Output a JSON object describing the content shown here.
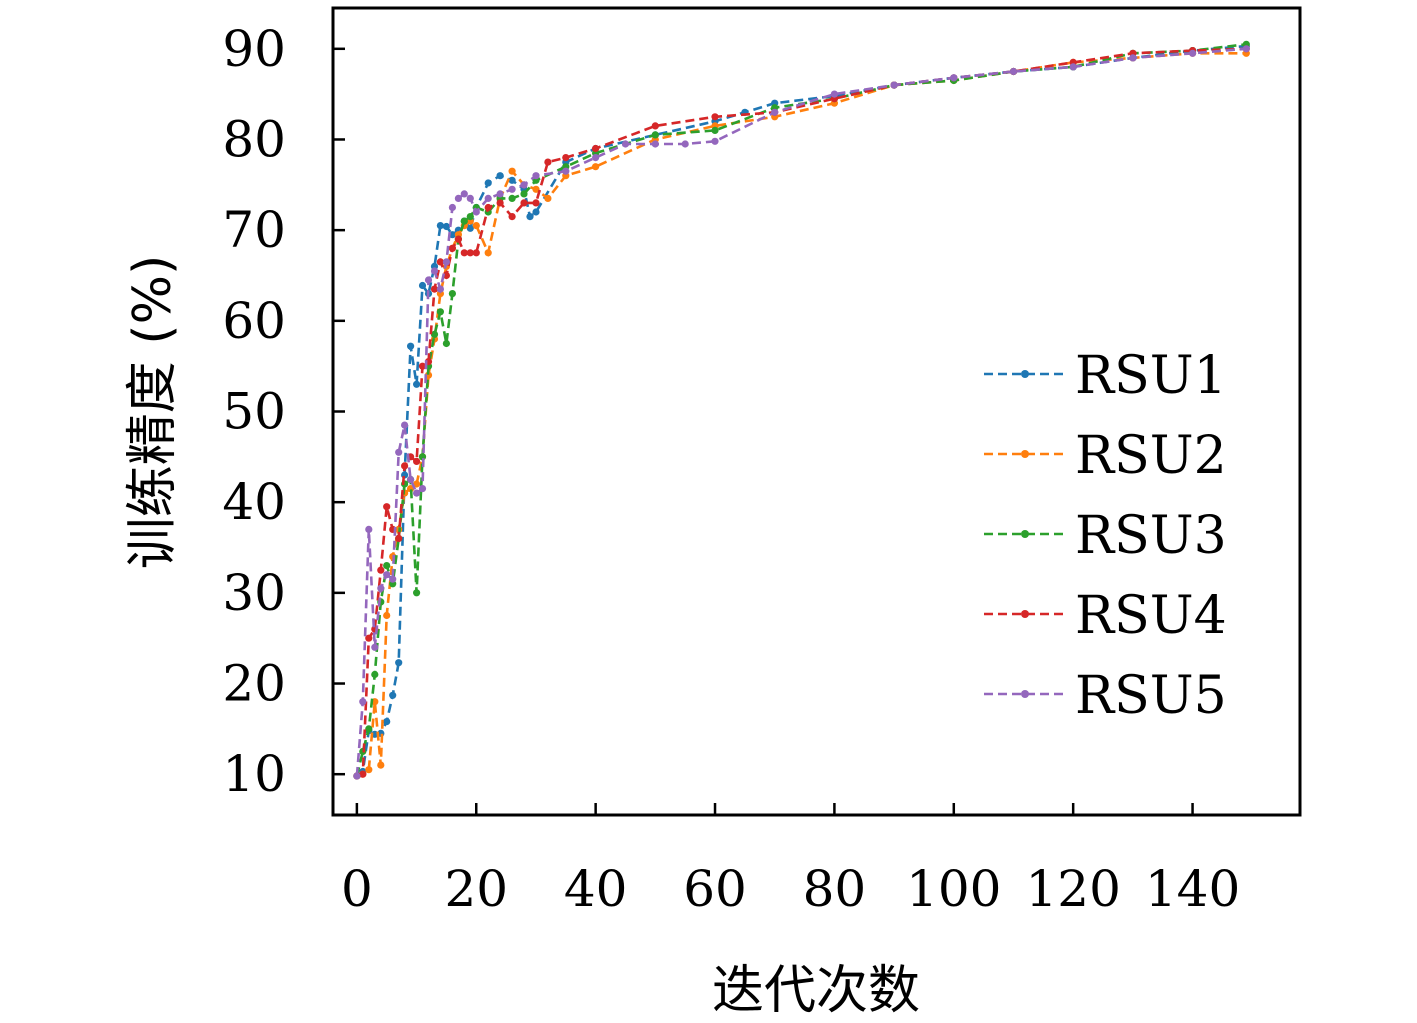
{
  "chart_data": {
    "type": "line",
    "xlabel": "迭代次数",
    "ylabel": "训练精度 (%)",
    "xlim": [
      -4,
      158
    ],
    "ylim": [
      5.5,
      94.5
    ],
    "xticks": [
      0,
      20,
      40,
      60,
      80,
      100,
      120,
      140
    ],
    "yticks": [
      10,
      20,
      30,
      40,
      50,
      60,
      70,
      80,
      90
    ],
    "grid": false,
    "legend_position": "center-right",
    "line_style": "dashed with dot markers",
    "series": [
      {
        "name": "RSU1",
        "color": "#1f77b4",
        "x": [
          0,
          1,
          2,
          3,
          4,
          5,
          6,
          7,
          8,
          9,
          10,
          11,
          12,
          13,
          14,
          15,
          16,
          17,
          18,
          19,
          20,
          22,
          24,
          26,
          28,
          29,
          30,
          35,
          40,
          50,
          60,
          65,
          70,
          80,
          90,
          100,
          110,
          120,
          130,
          140,
          149
        ],
        "y": [
          9.8,
          10.3,
          14.8,
          14.4,
          14.5,
          15.8,
          18.7,
          22.3,
          43.0,
          57.2,
          53.0,
          63.9,
          63.0,
          66.0,
          70.5,
          70.4,
          69.5,
          70.0,
          71.0,
          70.2,
          72.5,
          75.2,
          76.0,
          75.5,
          74.5,
          71.5,
          72.0,
          77.5,
          79.0,
          80.5,
          82.0,
          83.0,
          84.0,
          84.8,
          86.0,
          86.8,
          87.5,
          88.0,
          89.0,
          89.8,
          90.3
        ]
      },
      {
        "name": "RSU2",
        "color": "#ff7f0e",
        "x": [
          0,
          1,
          2,
          3,
          4,
          5,
          6,
          7,
          8,
          9,
          10,
          11,
          12,
          13,
          14,
          15,
          16,
          17,
          18,
          19,
          20,
          22,
          24,
          26,
          28,
          30,
          32,
          35,
          40,
          50,
          60,
          70,
          80,
          90,
          100,
          110,
          120,
          130,
          140,
          149
        ],
        "y": [
          9.8,
          10.0,
          10.5,
          18.0,
          11.0,
          27.5,
          34.0,
          37.0,
          41.0,
          41.5,
          42.0,
          45.0,
          54.0,
          58.0,
          63.0,
          66.0,
          68.0,
          69.5,
          70.5,
          71.0,
          70.5,
          67.5,
          73.5,
          76.5,
          75.0,
          74.5,
          73.5,
          76.0,
          77.0,
          80.0,
          81.5,
          82.5,
          84.0,
          86.0,
          86.5,
          87.5,
          88.5,
          89.0,
          89.5,
          89.5
        ]
      },
      {
        "name": "RSU3",
        "color": "#2ca02c",
        "x": [
          0,
          1,
          2,
          3,
          4,
          5,
          6,
          7,
          8,
          9,
          10,
          11,
          12,
          13,
          14,
          15,
          16,
          17,
          18,
          19,
          20,
          22,
          24,
          26,
          28,
          30,
          35,
          40,
          50,
          60,
          70,
          80,
          90,
          100,
          110,
          120,
          130,
          140,
          149
        ],
        "y": [
          9.8,
          12.5,
          15.0,
          21.0,
          29.0,
          33.0,
          31.0,
          36.0,
          42.0,
          42.5,
          30.0,
          45.0,
          55.0,
          58.5,
          61.0,
          57.5,
          63.0,
          69.0,
          71.0,
          71.5,
          72.5,
          72.0,
          73.5,
          73.5,
          74.0,
          75.5,
          77.0,
          78.5,
          80.5,
          81.0,
          83.5,
          84.5,
          86.0,
          86.5,
          87.5,
          88.0,
          89.5,
          89.8,
          90.5
        ]
      },
      {
        "name": "RSU4",
        "color": "#d62728",
        "x": [
          0,
          1,
          2,
          3,
          4,
          5,
          6,
          7,
          8,
          9,
          10,
          11,
          12,
          13,
          14,
          15,
          16,
          17,
          18,
          19,
          20,
          22,
          24,
          26,
          28,
          30,
          32,
          35,
          40,
          50,
          60,
          70,
          80,
          90,
          100,
          110,
          120,
          130,
          140,
          149
        ],
        "y": [
          9.8,
          10.0,
          25.0,
          26.0,
          32.5,
          39.5,
          37.0,
          36.0,
          44.0,
          45.0,
          44.5,
          55.0,
          55.5,
          63.5,
          66.5,
          65.0,
          68.0,
          69.0,
          67.5,
          67.5,
          67.5,
          72.5,
          73.0,
          71.5,
          73.0,
          73.0,
          77.5,
          78.0,
          79.0,
          81.5,
          82.5,
          83.0,
          84.5,
          86.0,
          86.8,
          87.5,
          88.5,
          89.5,
          89.8,
          90.0
        ]
      },
      {
        "name": "RSU5",
        "color": "#9467bd",
        "x": [
          0,
          1,
          2,
          3,
          4,
          5,
          6,
          7,
          8,
          9,
          10,
          11,
          12,
          13,
          14,
          15,
          16,
          17,
          18,
          19,
          20,
          22,
          24,
          26,
          28,
          30,
          35,
          40,
          45,
          50,
          55,
          60,
          70,
          80,
          90,
          100,
          110,
          120,
          130,
          140,
          149
        ],
        "y": [
          9.8,
          18.0,
          37.0,
          24.0,
          30.5,
          32.0,
          31.5,
          45.5,
          48.5,
          42.5,
          41.0,
          41.5,
          64.5,
          65.5,
          63.5,
          66.5,
          72.5,
          73.5,
          74.0,
          73.5,
          72.0,
          73.5,
          74.0,
          74.5,
          75.0,
          76.0,
          76.5,
          78.0,
          79.5,
          79.5,
          79.5,
          79.8,
          83.0,
          85.0,
          86.0,
          86.8,
          87.5,
          88.0,
          89.0,
          89.5,
          90.0
        ]
      }
    ]
  }
}
